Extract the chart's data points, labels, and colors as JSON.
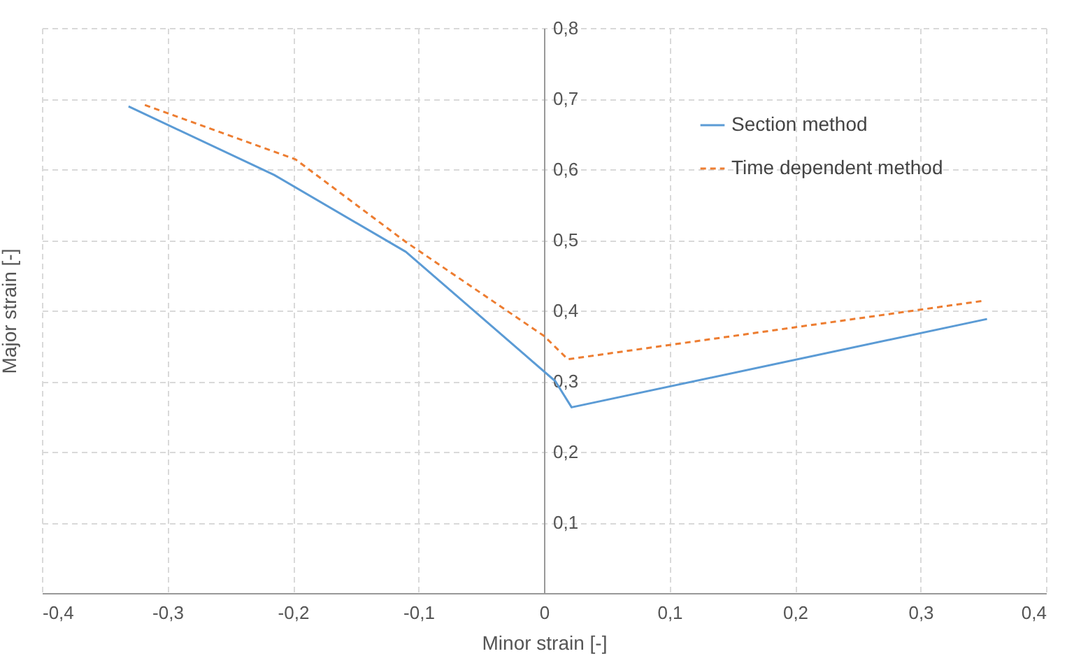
{
  "chart_data": {
    "type": "line",
    "xlabel": "Minor strain [-]",
    "ylabel": "Major strain [-]",
    "xlim": [
      -0.4,
      0.4
    ],
    "ylim": [
      0,
      0.8
    ],
    "xticks": [
      {
        "value": -0.4,
        "label": "-0,4"
      },
      {
        "value": -0.3,
        "label": "-0,3"
      },
      {
        "value": -0.2,
        "label": "-0,2"
      },
      {
        "value": -0.1,
        "label": "-0,1"
      },
      0,
      {
        "value": 0.1,
        "label": "0,1"
      },
      {
        "value": 0.2,
        "label": "0,2"
      },
      {
        "value": 0.3,
        "label": "0,3"
      },
      {
        "value": 0.4,
        "label": "0,4"
      }
    ],
    "yticks": [
      {
        "value": 0,
        "label": null
      },
      {
        "value": 0.1,
        "label": "0,1"
      },
      {
        "value": 0.2,
        "label": "0,2"
      },
      {
        "value": 0.3,
        "label": "0,3"
      },
      {
        "value": 0.4,
        "label": "0,4"
      },
      {
        "value": 0.5,
        "label": "0,5"
      },
      {
        "value": 0.6,
        "label": "0,6"
      },
      {
        "value": 0.7,
        "label": "0,7"
      },
      {
        "value": 0.8,
        "label": "0,8"
      }
    ],
    "grid": true,
    "legend": "top right",
    "marker": "none",
    "series": [
      {
        "name": "Section method",
        "color": "#5b9bd5",
        "line_style": "solid",
        "x": [
          -0.331,
          -0.215,
          -0.11,
          0.009,
          0.022,
          0.353
        ],
        "values": [
          0.689,
          0.592,
          0.483,
          0.3,
          0.263,
          0.388
        ]
      },
      {
        "name": "Time dependent method",
        "color": "#ed7d31",
        "line_style": "dashed",
        "x": [
          -0.318,
          -0.198,
          -0.11,
          0,
          0.019,
          0.351
        ],
        "values": [
          0.691,
          0.614,
          0.497,
          0.364,
          0.331,
          0.414
        ]
      }
    ]
  }
}
